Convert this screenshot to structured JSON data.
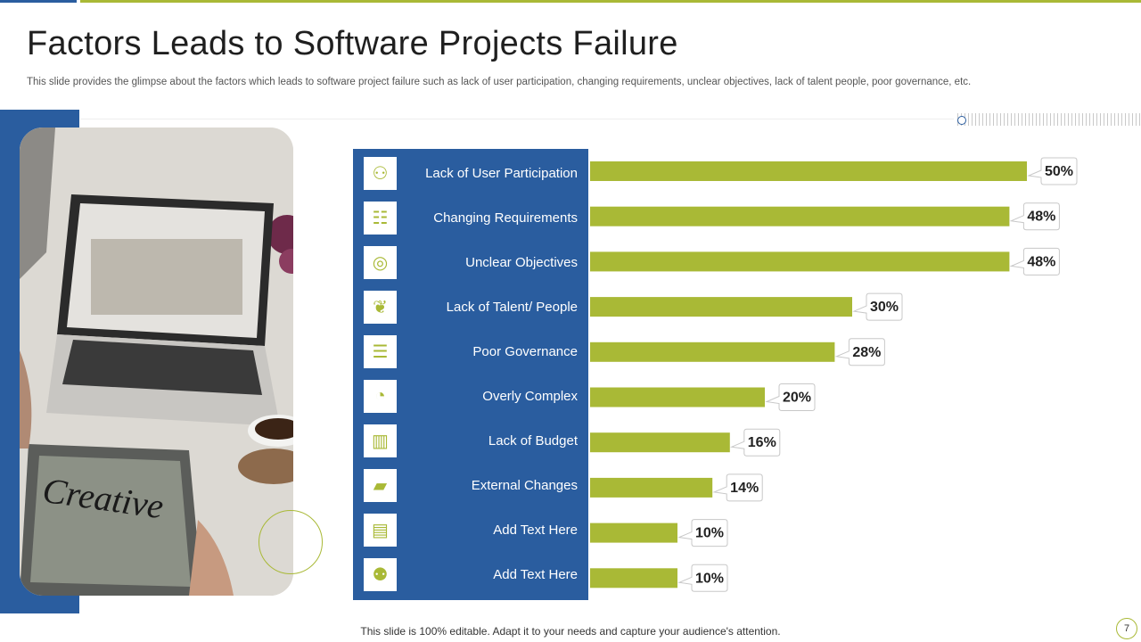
{
  "title": "Factors Leads to Software Projects Failure",
  "subtitle": "This slide provides the glimpse about the factors which leads to software project failure such as lack of user participation, changing requirements, unclear objectives, lack of talent people, poor governance, etc.",
  "footer": "This slide is 100% editable. Adapt it to your needs and capture your audience's attention.",
  "page_number": "7",
  "photo_text": "Creative",
  "colors": {
    "blue": "#2a5d9f",
    "green": "#a9b936"
  },
  "icons": [
    "people-icon",
    "checklist-icon",
    "target-icon",
    "hand-plant-icon",
    "governance-icon",
    "pie-chart-icon",
    "building-icon",
    "document-icon",
    "phone-icon",
    "users-group-icon"
  ],
  "chart_data": {
    "type": "bar",
    "orientation": "horizontal",
    "title": "Factors Leads to Software Projects Failure",
    "categories": [
      "Lack of User Participation",
      "Changing Requirements",
      "Unclear Objectives",
      "Lack of Talent/ People",
      "Poor Governance",
      "Overly Complex",
      "Lack of Budget",
      "External Changes",
      "Add Text Here",
      "Add Text Here"
    ],
    "values": [
      50,
      48,
      48,
      30,
      28,
      20,
      16,
      14,
      10,
      10
    ],
    "labels": [
      "50%",
      "48%",
      "48%",
      "30%",
      "28%",
      "20%",
      "16%",
      "14%",
      "10%",
      "10%"
    ],
    "unit": "%",
    "xlim": [
      0,
      50
    ],
    "grid": false
  }
}
